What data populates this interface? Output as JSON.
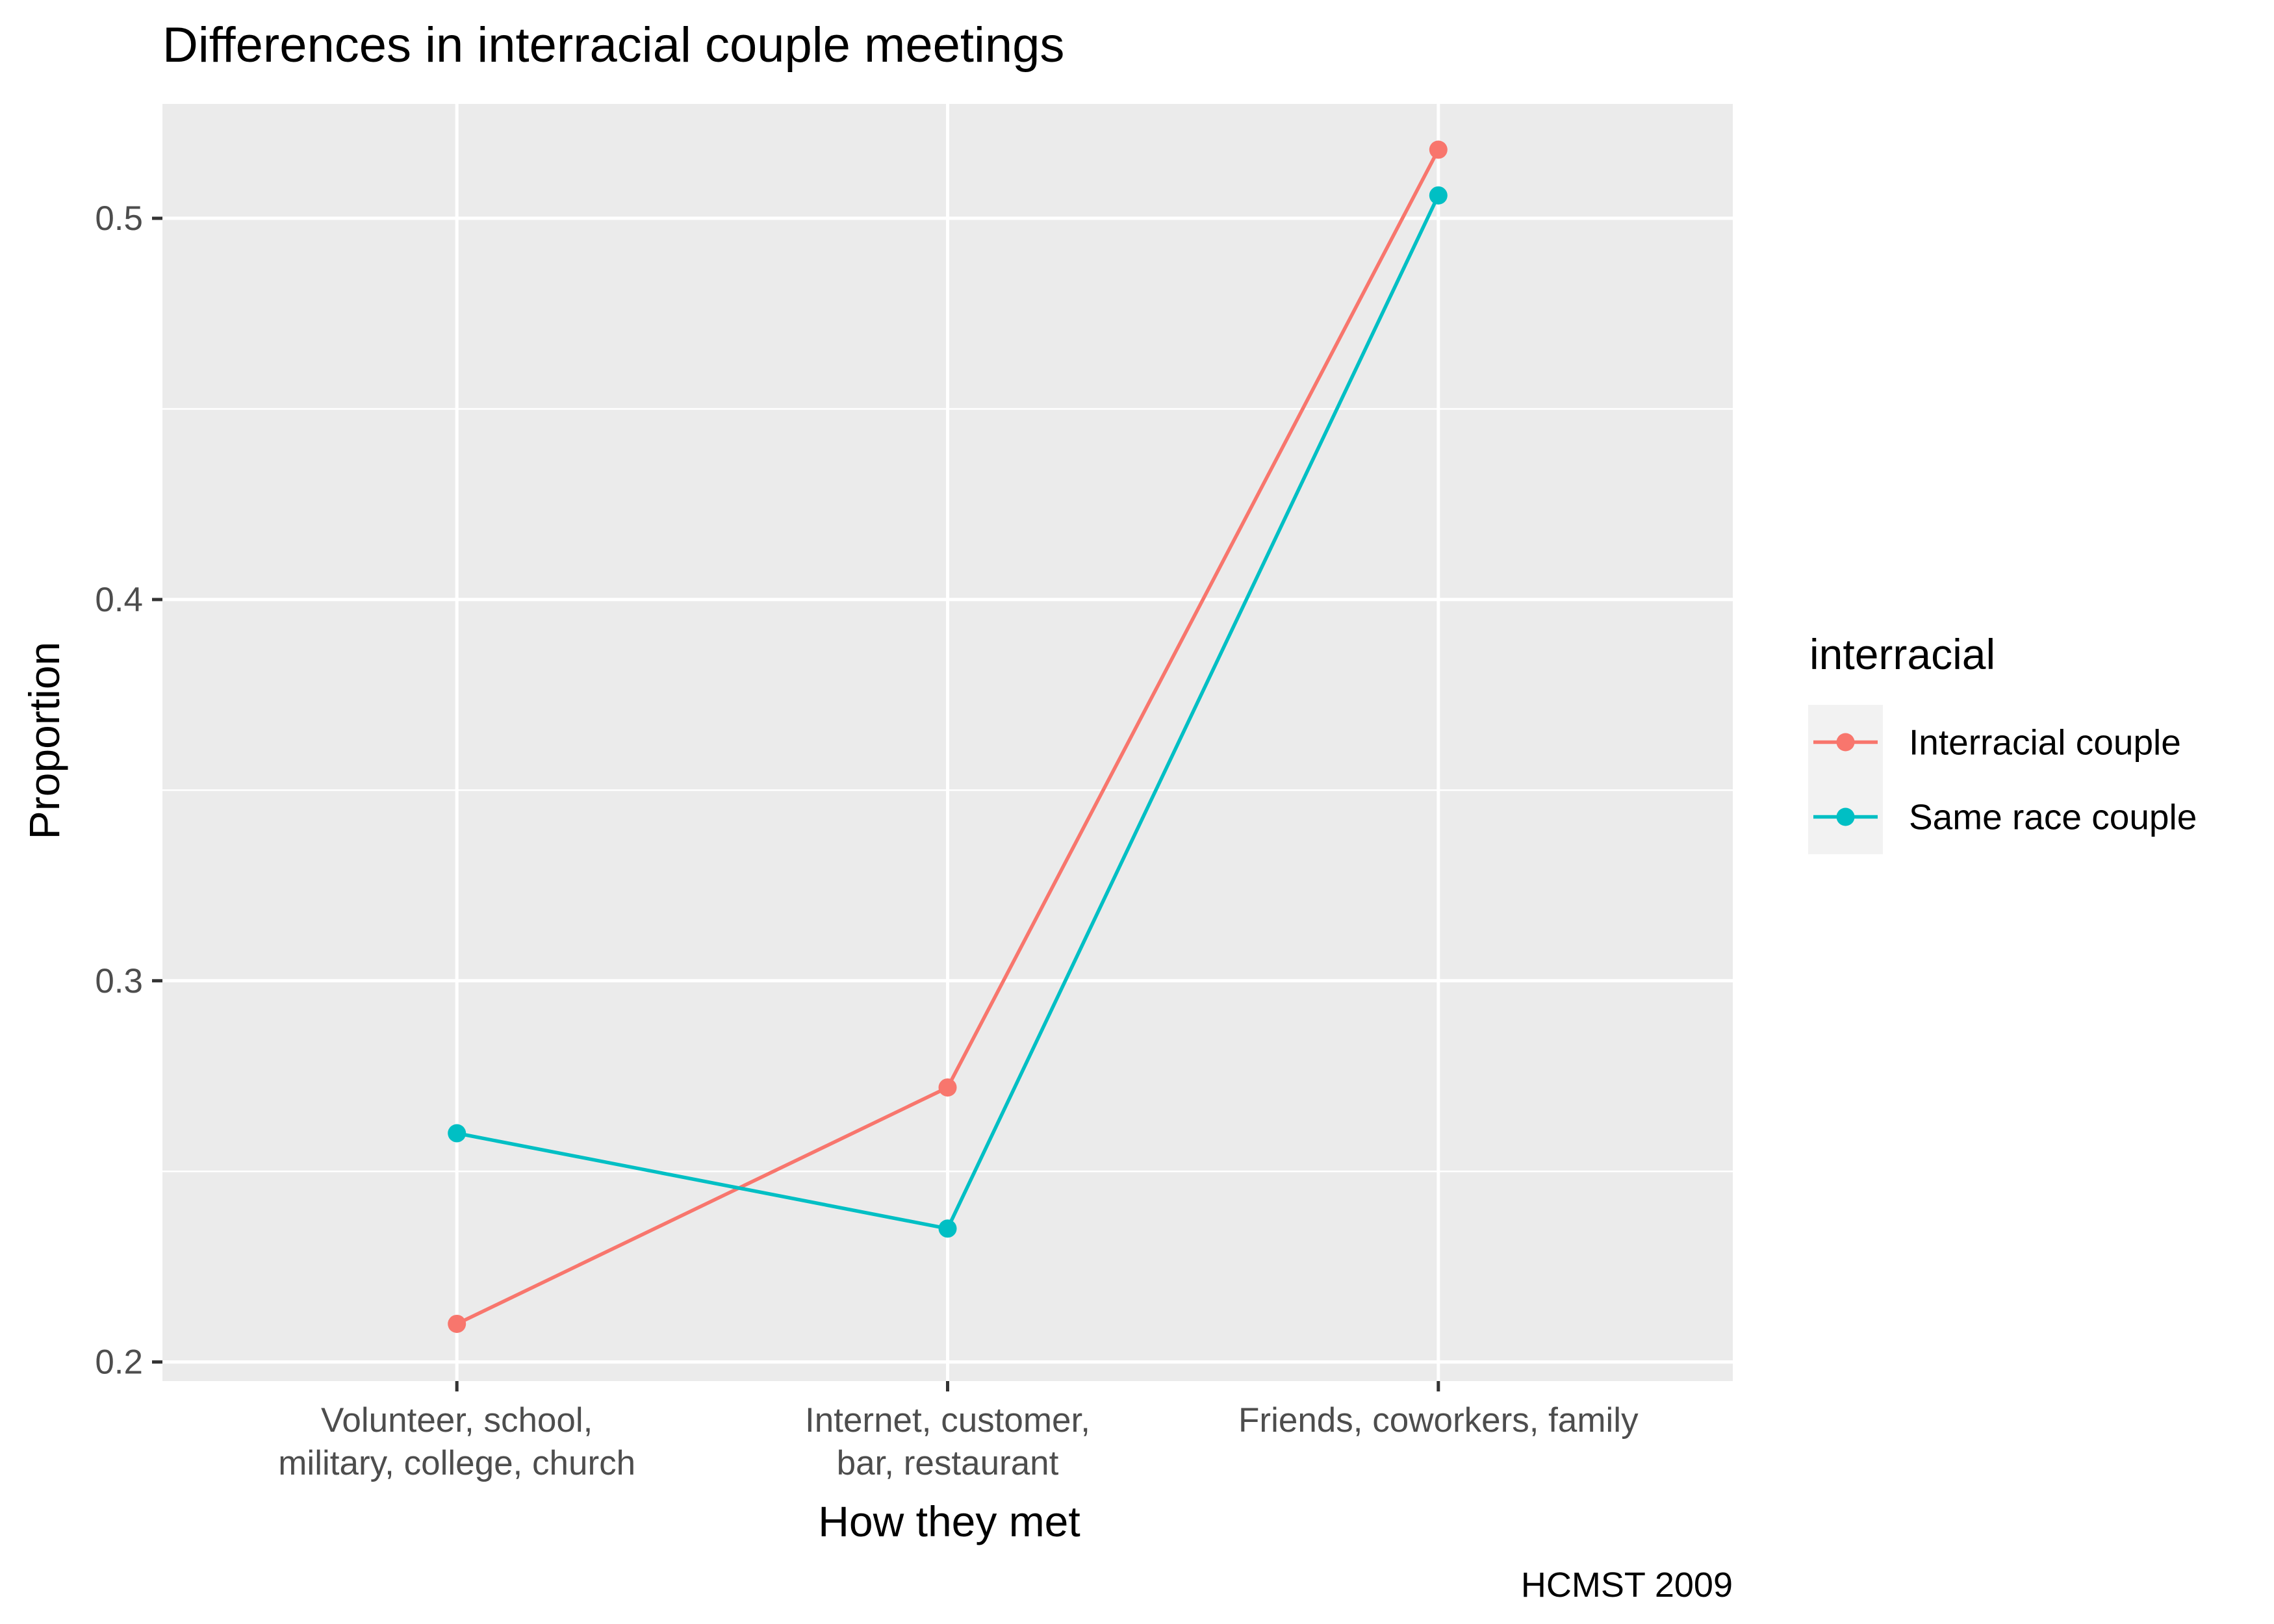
{
  "chart_data": {
    "type": "line",
    "title": "Differences in interracial couple meetings",
    "xlabel": "How they met",
    "ylabel": "Proportion",
    "caption": "HCMST 2009",
    "categories": [
      [
        "Volunteer, school,",
        "military, college, church"
      ],
      [
        "Internet, customer,",
        "bar, restaurant"
      ],
      [
        "Friends, coworkers, family"
      ]
    ],
    "ylim": [
      0.195,
      0.53
    ],
    "yticks": [
      0.2,
      0.3,
      0.4,
      0.5
    ],
    "ytick_labels": [
      "0.2",
      "0.3",
      "0.4",
      "0.5"
    ],
    "grid": true,
    "legend": {
      "title": "interracial",
      "placement": "right",
      "entries": [
        "Interracial couple",
        "Same race couple"
      ]
    },
    "series": [
      {
        "name": "Interracial couple",
        "color": "#F8766D",
        "values": [
          0.21,
          0.272,
          0.518
        ]
      },
      {
        "name": "Same race couple",
        "color": "#00BFC4",
        "values": [
          0.26,
          0.235,
          0.506
        ]
      }
    ],
    "panel_background": "#EBEBEB",
    "grid_color": "#FFFFFF"
  }
}
